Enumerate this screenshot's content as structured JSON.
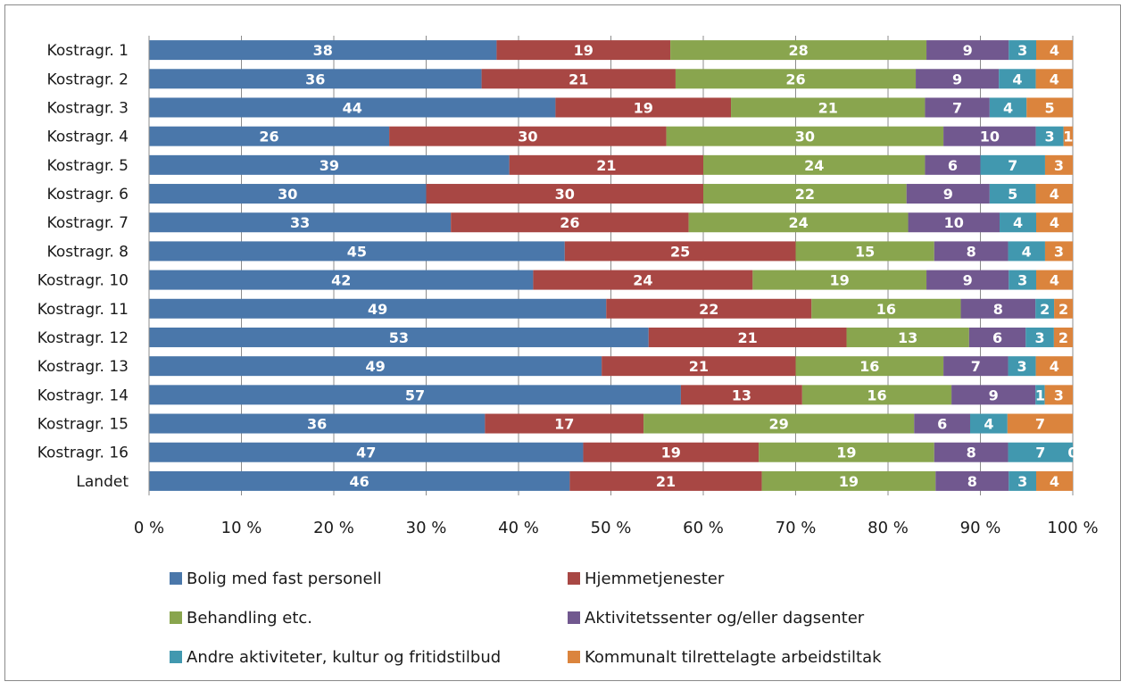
{
  "chart_data": {
    "type": "bar",
    "orientation": "horizontal",
    "stacked": "percent",
    "title": "",
    "xlabel": "",
    "ylabel": "",
    "xlim": [
      0,
      100
    ],
    "x_ticks": [
      "0 %",
      "10 %",
      "20 %",
      "30 %",
      "40 %",
      "50 %",
      "60 %",
      "70 %",
      "80 %",
      "90 %",
      "100 %"
    ],
    "grid": true,
    "legend_position": "bottom",
    "categories": [
      "Kostragr. 1",
      "Kostragr. 2",
      "Kostragr. 3",
      "Kostragr. 4",
      "Kostragr. 5",
      "Kostragr. 6",
      "Kostragr. 7",
      "Kostragr. 8",
      "Kostragr. 10",
      "Kostragr. 11",
      "Kostragr. 12",
      "Kostragr. 13",
      "Kostragr. 14",
      "Kostragr. 15",
      "Kostragr. 16",
      "Landet"
    ],
    "series": [
      {
        "name": "Bolig med fast personell",
        "color": "#4a77aa",
        "values": [
          38,
          36,
          44,
          26,
          39,
          30,
          33,
          45,
          42,
          49,
          53,
          49,
          57,
          36,
          47,
          46
        ]
      },
      {
        "name": "Hjemmetjenester",
        "color": "#a84744",
        "values": [
          19,
          21,
          19,
          30,
          21,
          30,
          26,
          25,
          24,
          22,
          21,
          21,
          13,
          17,
          19,
          21
        ]
      },
      {
        "name": "Behandling etc.",
        "color": "#89a54e",
        "values": [
          28,
          26,
          21,
          30,
          24,
          22,
          24,
          15,
          19,
          16,
          13,
          16,
          16,
          29,
          19,
          19
        ]
      },
      {
        "name": "Aktivitetssenter og/eller dagsenter",
        "color": "#71588f",
        "values": [
          9,
          9,
          7,
          10,
          6,
          9,
          10,
          8,
          9,
          8,
          6,
          7,
          9,
          6,
          8,
          8
        ]
      },
      {
        "name": "Andre aktiviteter, kultur og fritidstilbud",
        "color": "#4198af",
        "values": [
          3,
          4,
          4,
          3,
          7,
          5,
          4,
          4,
          3,
          2,
          3,
          3,
          1,
          4,
          7,
          3
        ]
      },
      {
        "name": "Kommunalt tilrettelagte arbeidstiltak",
        "color": "#db843d",
        "values": [
          4,
          4,
          5,
          1,
          3,
          4,
          4,
          3,
          4,
          2,
          2,
          4,
          3,
          7,
          0,
          4
        ]
      }
    ]
  }
}
